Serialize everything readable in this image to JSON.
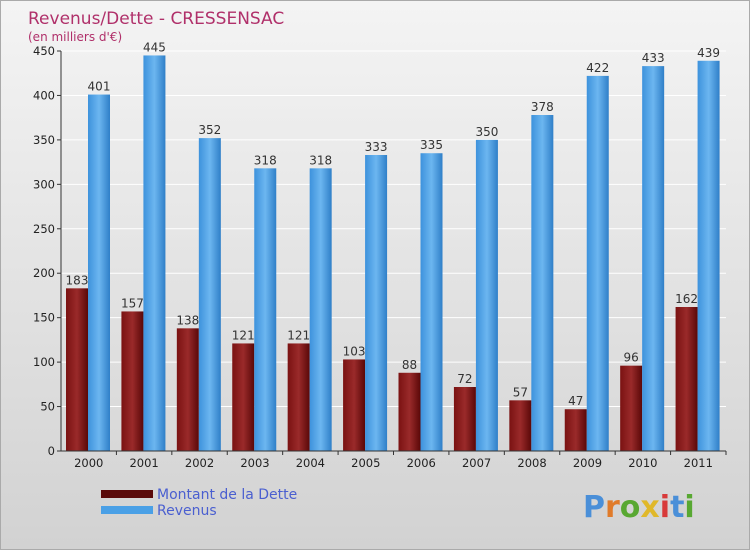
{
  "chart_data": {
    "type": "bar",
    "title": "Revenus/Dette - CRESSENSAC",
    "subtitle": "(en milliers d'€)",
    "categories": [
      "2000",
      "2001",
      "2002",
      "2003",
      "2004",
      "2005",
      "2006",
      "2007",
      "2008",
      "2009",
      "2010",
      "2011"
    ],
    "series": [
      {
        "name": "Montant de la Dette",
        "color": "#8b1a1a",
        "values": [
          183,
          157,
          138,
          121,
          121,
          103,
          88,
          72,
          57,
          47,
          96,
          162
        ]
      },
      {
        "name": "Revenus",
        "color": "#4aa0e6",
        "values": [
          401,
          445,
          352,
          318,
          318,
          333,
          335,
          350,
          378,
          422,
          433,
          439
        ]
      }
    ],
    "ylim": [
      0,
      450
    ],
    "yticks": [
      0,
      50,
      100,
      150,
      200,
      250,
      300,
      350,
      400,
      450
    ],
    "grid": true,
    "legend": "bottom-left"
  },
  "logo": {
    "text": "Proxiti",
    "letters": [
      "P",
      "r",
      "o",
      "x",
      "i",
      "t",
      "i"
    ],
    "colors": [
      "#4a8fd8",
      "#e07b2a",
      "#58a832",
      "#e0b82a",
      "#d83a3a",
      "#4a8fd8",
      "#58a832"
    ]
  }
}
